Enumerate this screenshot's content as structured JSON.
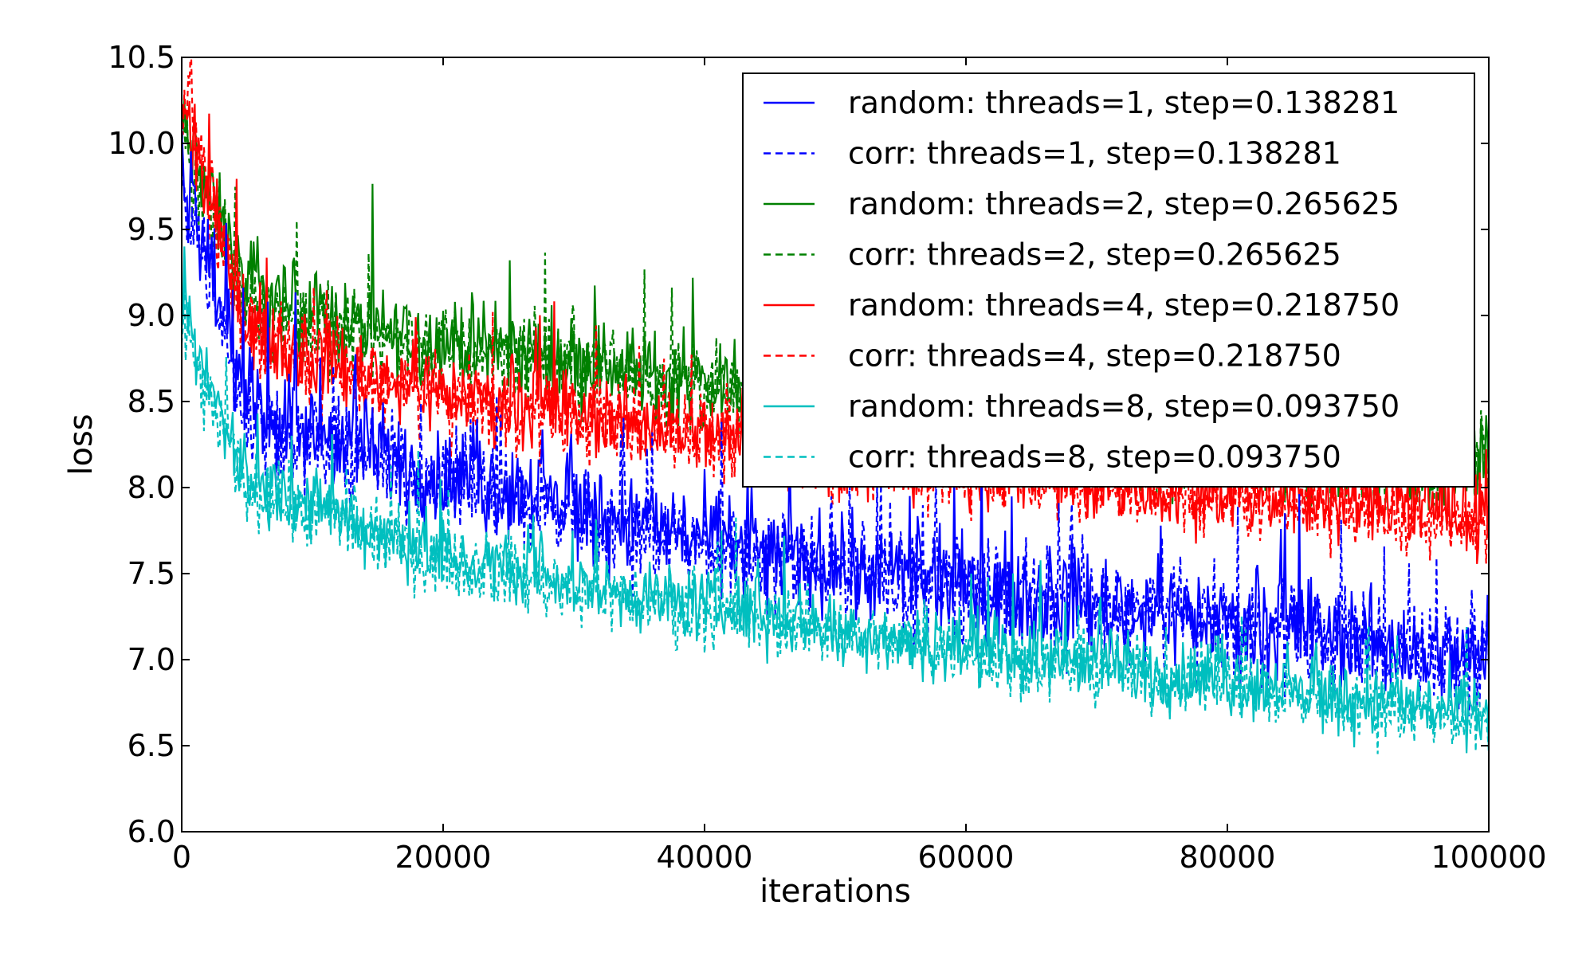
{
  "chart_data": {
    "type": "line",
    "title": "",
    "xlabel": "iterations",
    "ylabel": "loss",
    "xlim": [
      0,
      100000
    ],
    "ylim": [
      6.0,
      10.5
    ],
    "xticks": [
      0,
      20000,
      40000,
      60000,
      80000,
      100000
    ],
    "xtick_labels": [
      "0",
      "20000",
      "40000",
      "60000",
      "80000",
      "100000"
    ],
    "yticks": [
      6.0,
      6.5,
      7.0,
      7.5,
      8.0,
      8.5,
      9.0,
      9.5,
      10.0,
      10.5
    ],
    "ytick_labels": [
      "6.0",
      "6.5",
      "7.0",
      "7.5",
      "8.0",
      "8.5",
      "9.0",
      "9.5",
      "10.0",
      "10.5"
    ],
    "grid": false,
    "legend_position": "upper-right",
    "x": [
      0,
      5000,
      10000,
      15000,
      20000,
      25000,
      30000,
      35000,
      40000,
      45000,
      50000,
      55000,
      60000,
      65000,
      70000,
      75000,
      80000,
      85000,
      90000,
      95000,
      100000
    ],
    "series": [
      {
        "name": "random: threads=1, step=0.138281",
        "color": "#0000ff",
        "style": "solid",
        "noise": 0.25,
        "values": [
          9.9,
          8.5,
          8.3,
          8.2,
          8.05,
          8.0,
          7.9,
          7.8,
          7.7,
          7.62,
          7.55,
          7.48,
          7.42,
          7.38,
          7.33,
          7.28,
          7.22,
          7.17,
          7.12,
          7.05,
          7.0
        ]
      },
      {
        "name": "corr: threads=1, step=0.138281",
        "color": "#0000ff",
        "style": "dashed",
        "noise": 0.25,
        "values": [
          9.8,
          8.45,
          8.25,
          8.15,
          8.05,
          7.95,
          7.85,
          7.75,
          7.68,
          7.6,
          7.52,
          7.45,
          7.4,
          7.35,
          7.3,
          7.25,
          7.2,
          7.15,
          7.1,
          7.02,
          6.98
        ]
      },
      {
        "name": "random: threads=2, step=0.265625",
        "color": "#008000",
        "style": "solid",
        "noise": 0.22,
        "values": [
          10.1,
          9.15,
          9.0,
          8.9,
          8.85,
          8.8,
          8.75,
          8.68,
          8.6,
          8.5,
          8.45,
          8.4,
          8.35,
          8.3,
          8.27,
          8.25,
          8.22,
          8.2,
          8.17,
          8.15,
          8.15
        ]
      },
      {
        "name": "corr: threads=2, step=0.265625",
        "color": "#008000",
        "style": "dashed",
        "noise": 0.22,
        "values": [
          10.0,
          9.1,
          8.95,
          8.88,
          8.82,
          8.78,
          8.72,
          8.66,
          8.58,
          8.5,
          8.45,
          8.4,
          8.35,
          8.32,
          8.28,
          8.26,
          8.23,
          8.2,
          8.18,
          8.15,
          8.12
        ]
      },
      {
        "name": "random: threads=4, step=0.218750",
        "color": "#ff0000",
        "style": "solid",
        "noise": 0.2,
        "values": [
          10.2,
          8.95,
          8.75,
          8.65,
          8.55,
          8.5,
          8.42,
          8.38,
          8.32,
          8.25,
          8.2,
          8.15,
          8.12,
          8.07,
          8.02,
          8.0,
          7.98,
          7.95,
          7.92,
          7.88,
          7.85
        ]
      },
      {
        "name": "corr: threads=4, step=0.218750",
        "color": "#ff0000",
        "style": "dashed",
        "noise": 0.2,
        "values": [
          10.3,
          8.9,
          8.7,
          8.6,
          8.5,
          8.45,
          8.4,
          8.35,
          8.3,
          8.22,
          8.18,
          8.12,
          8.1,
          8.05,
          8.0,
          7.98,
          7.95,
          7.92,
          7.88,
          7.85,
          7.82
        ]
      },
      {
        "name": "random: threads=8, step=0.093750",
        "color": "#00bfbf",
        "style": "solid",
        "noise": 0.18,
        "values": [
          9.0,
          8.05,
          7.9,
          7.75,
          7.62,
          7.52,
          7.45,
          7.38,
          7.32,
          7.25,
          7.2,
          7.12,
          7.08,
          7.02,
          6.98,
          6.92,
          6.88,
          6.82,
          6.78,
          6.72,
          6.68
        ]
      },
      {
        "name": "corr: threads=8, step=0.093750",
        "color": "#00bfbf",
        "style": "dashed",
        "noise": 0.18,
        "values": [
          8.9,
          8.0,
          7.85,
          7.7,
          7.6,
          7.5,
          7.42,
          7.35,
          7.28,
          7.22,
          7.18,
          7.1,
          7.05,
          7.0,
          6.95,
          6.9,
          6.86,
          6.8,
          6.75,
          6.7,
          6.65
        ]
      }
    ]
  }
}
